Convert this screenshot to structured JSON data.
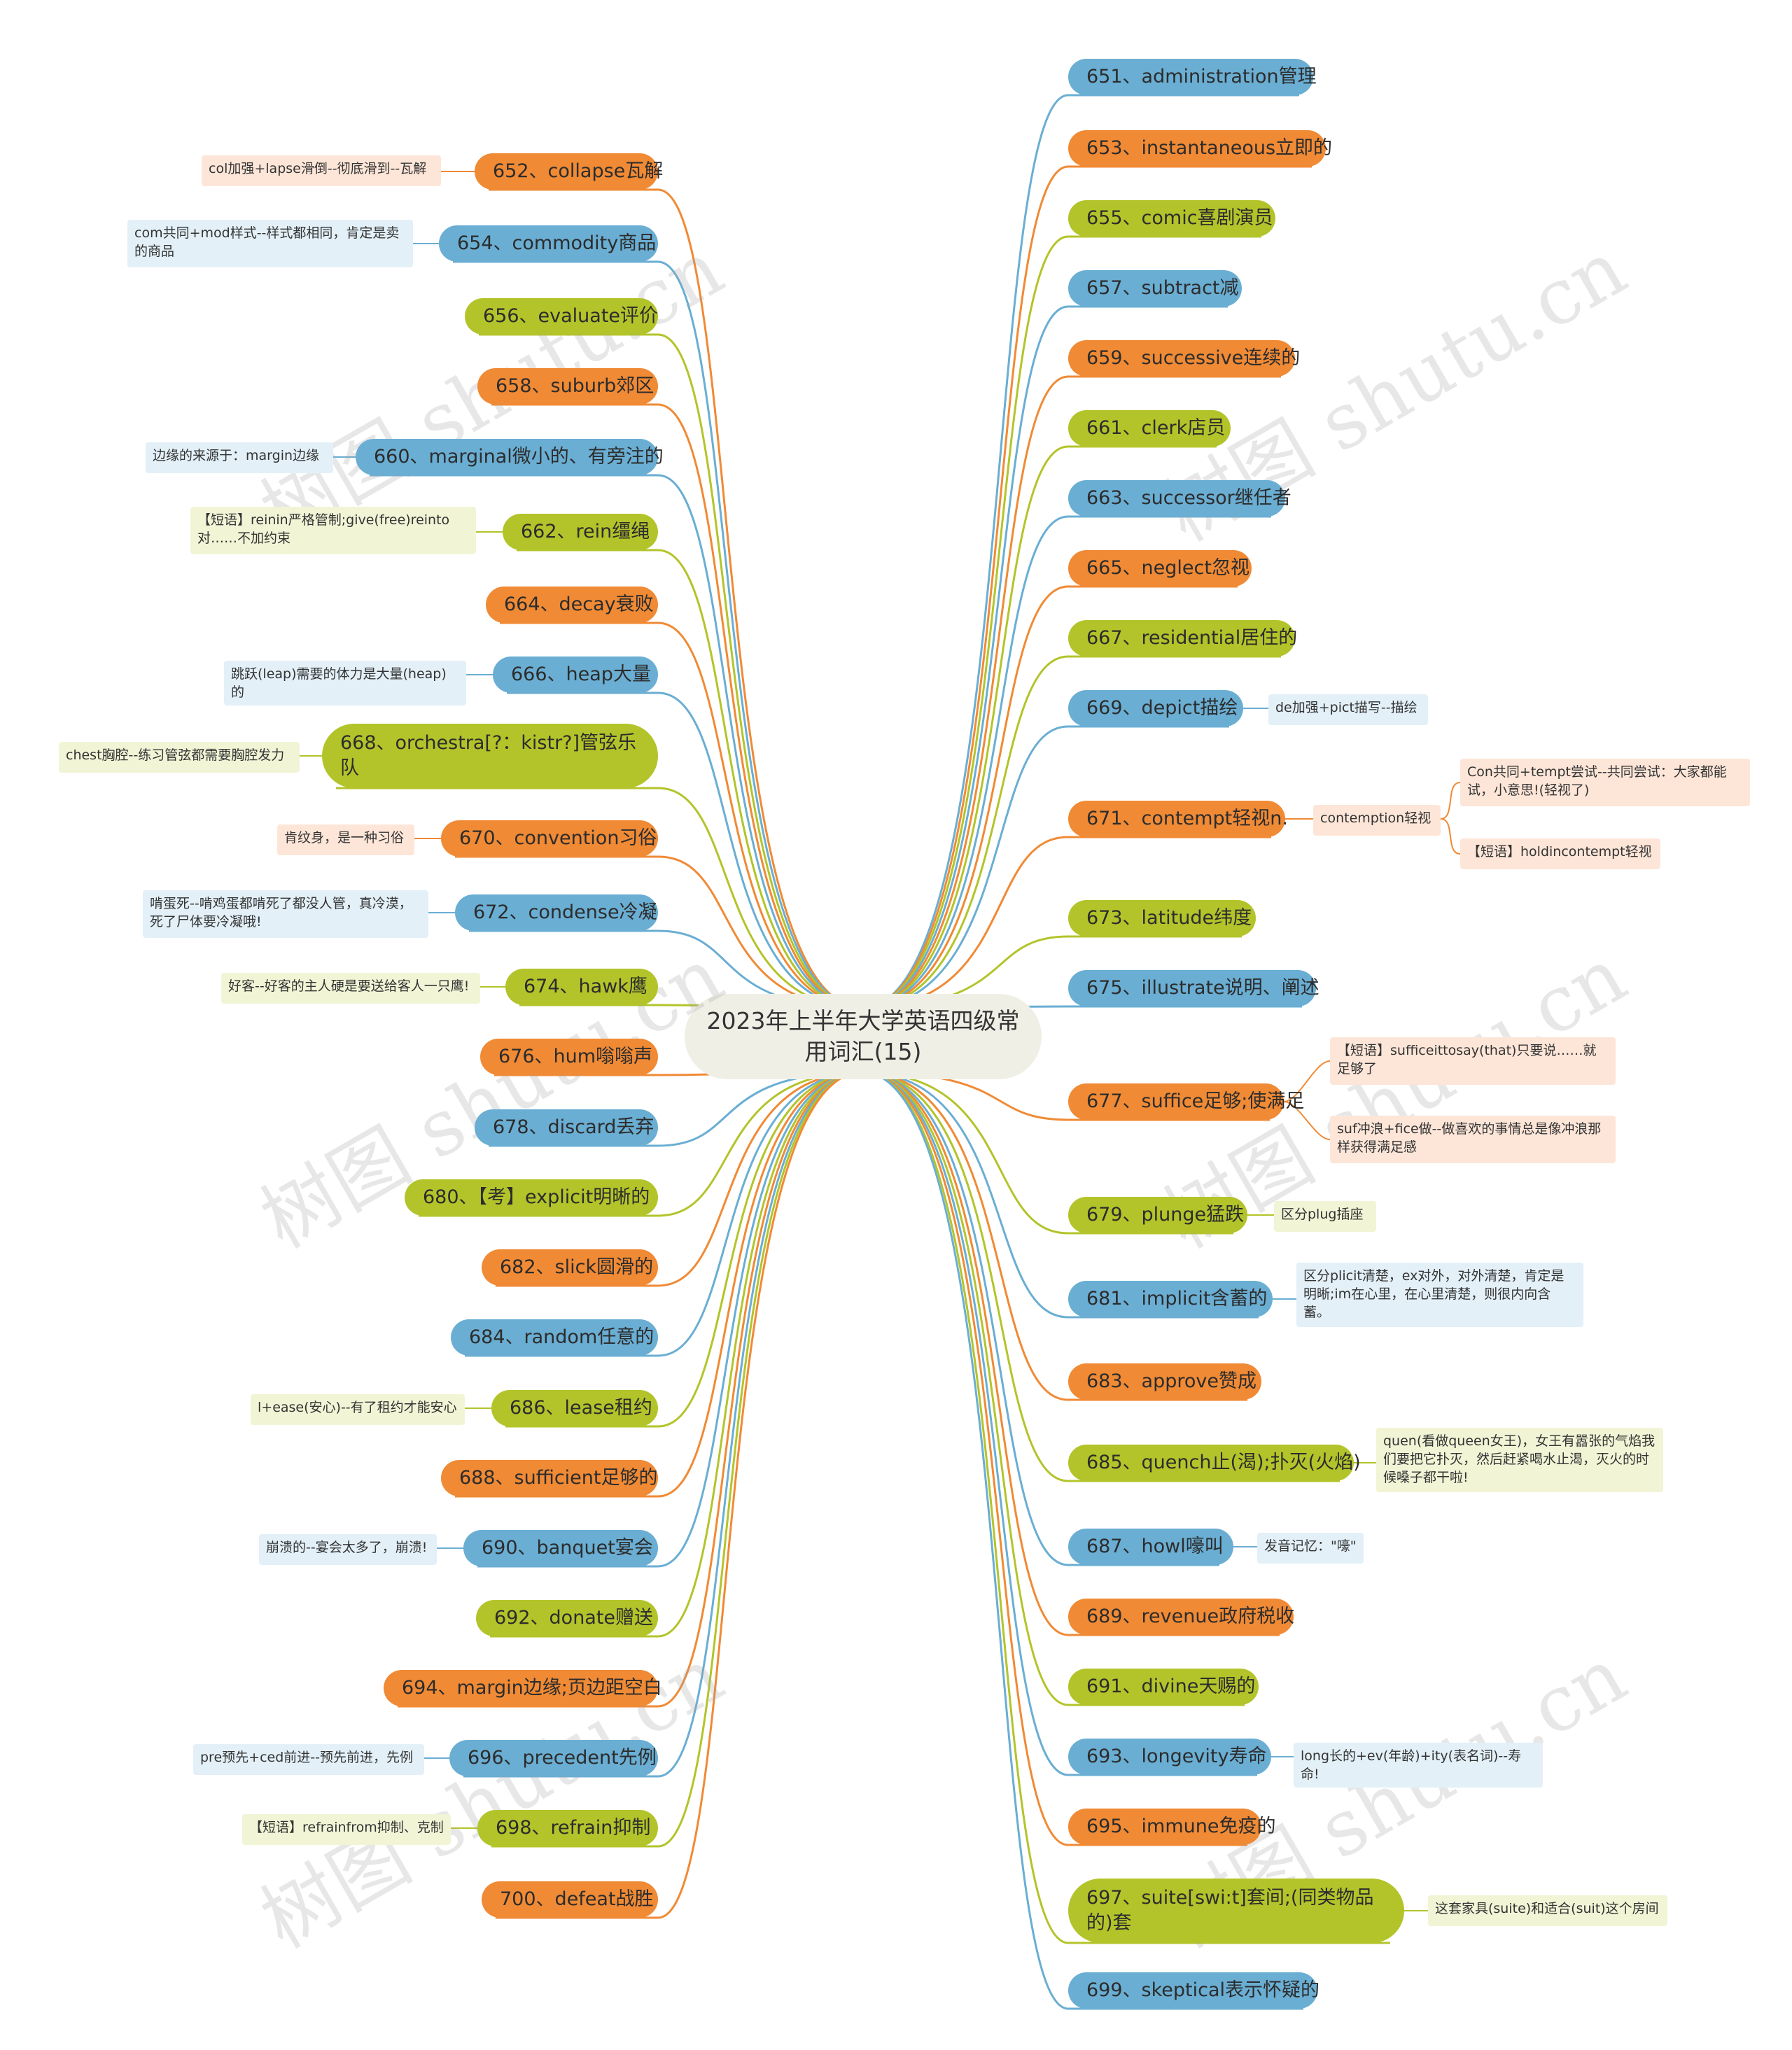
{
  "center_title": "2023年上半年大学英语四级常用词汇(15)",
  "watermark": "树图 shutu.cn",
  "left": [
    {
      "id": "n652",
      "label": "652、collapse瓦解",
      "color": "orange",
      "notes": [
        "col加强+lapse滑倒--彻底滑到--瓦解"
      ]
    },
    {
      "id": "n654",
      "label": "654、commodity商品",
      "color": "blue",
      "notes": [
        "com共同+mod样式--样式都相同，肯定是卖的商品"
      ]
    },
    {
      "id": "n656",
      "label": "656、evaluate评价",
      "color": "green",
      "notes": []
    },
    {
      "id": "n658",
      "label": "658、suburb郊区",
      "color": "orange",
      "notes": []
    },
    {
      "id": "n660",
      "label": "660、marginal微小的、有旁注的",
      "color": "blue",
      "notes": [
        "边缘的来源于：margin边缘"
      ]
    },
    {
      "id": "n662",
      "label": "662、rein缰绳",
      "color": "green",
      "notes": [
        "【短语】reinin严格管制;give(free)reinto对……不加约束"
      ]
    },
    {
      "id": "n664",
      "label": "664、decay衰败",
      "color": "orange",
      "notes": []
    },
    {
      "id": "n666",
      "label": "666、heap大量",
      "color": "blue",
      "notes": [
        "跳跃(leap)需要的体力是大量(heap)的"
      ]
    },
    {
      "id": "n668",
      "label": "668、orchestra[?：kistr?]管弦乐队",
      "color": "green",
      "notes": [
        "chest胸腔--练习管弦都需要胸腔发力"
      ]
    },
    {
      "id": "n670",
      "label": "670、convention习俗",
      "color": "orange",
      "notes": [
        "肯纹身，是一种习俗"
      ]
    },
    {
      "id": "n672",
      "label": "672、condense冷凝",
      "color": "blue",
      "notes": [
        "啃蛋死--啃鸡蛋都啃死了都没人管，真冷漠，死了尸体要冷凝哦!"
      ]
    },
    {
      "id": "n674",
      "label": "674、hawk鹰",
      "color": "green",
      "notes": [
        "好客--好客的主人硬是要送给客人一只鹰!"
      ]
    },
    {
      "id": "n676",
      "label": "676、hum嗡嗡声",
      "color": "orange",
      "notes": []
    },
    {
      "id": "n678",
      "label": "678、discard丢弃",
      "color": "blue",
      "notes": []
    },
    {
      "id": "n680",
      "label": "680、【考】explicit明晰的",
      "color": "green",
      "notes": []
    },
    {
      "id": "n682",
      "label": "682、slick圆滑的",
      "color": "orange",
      "notes": []
    },
    {
      "id": "n684",
      "label": "684、random任意的",
      "color": "blue",
      "notes": []
    },
    {
      "id": "n686",
      "label": "686、lease租约",
      "color": "green",
      "notes": [
        "l+ease(安心)--有了租约才能安心"
      ]
    },
    {
      "id": "n688",
      "label": "688、sufficient足够的",
      "color": "orange",
      "notes": []
    },
    {
      "id": "n690",
      "label": "690、banquet宴会",
      "color": "blue",
      "notes": [
        "崩溃的--宴会太多了，崩溃!"
      ]
    },
    {
      "id": "n692",
      "label": "692、donate赠送",
      "color": "green",
      "notes": []
    },
    {
      "id": "n694",
      "label": "694、margin边缘;页边距空白",
      "color": "orange",
      "notes": []
    },
    {
      "id": "n696",
      "label": "696、precedent先例",
      "color": "blue",
      "notes": [
        "pre预先+ced前进--预先前进，先例"
      ]
    },
    {
      "id": "n698",
      "label": "698、refrain抑制",
      "color": "green",
      "notes": [
        "【短语】refrainfrom抑制、克制"
      ]
    },
    {
      "id": "n700",
      "label": "700、defeat战胜",
      "color": "orange",
      "notes": []
    }
  ],
  "right": [
    {
      "id": "n651",
      "label": "651、administration管理",
      "color": "blue",
      "notes": []
    },
    {
      "id": "n653",
      "label": "653、instantaneous立即的",
      "color": "orange",
      "notes": []
    },
    {
      "id": "n655",
      "label": "655、comic喜剧演员",
      "color": "green",
      "notes": []
    },
    {
      "id": "n657",
      "label": "657、subtract减",
      "color": "blue",
      "notes": []
    },
    {
      "id": "n659",
      "label": "659、successive连续的",
      "color": "orange",
      "notes": []
    },
    {
      "id": "n661",
      "label": "661、clerk店员",
      "color": "green",
      "notes": []
    },
    {
      "id": "n663",
      "label": "663、successor继任者",
      "color": "blue",
      "notes": []
    },
    {
      "id": "n665",
      "label": "665、neglect忽视",
      "color": "orange",
      "notes": []
    },
    {
      "id": "n667",
      "label": "667、residential居住的",
      "color": "green",
      "notes": []
    },
    {
      "id": "n669",
      "label": "669、depict描绘",
      "color": "blue",
      "notes": [
        "de加强+pict描写--描绘"
      ]
    },
    {
      "id": "n671",
      "label": "671、contempt轻视n.",
      "color": "orange",
      "notes": [
        "contemption轻视"
      ],
      "sub": [
        "Con共同+tempt尝试--共同尝试：大家都能试，小意思!(轻视了)",
        "【短语】holdincontempt轻视"
      ]
    },
    {
      "id": "n673",
      "label": "673、latitude纬度",
      "color": "green",
      "notes": []
    },
    {
      "id": "n675",
      "label": "675、illustrate说明、阐述",
      "color": "blue",
      "notes": []
    },
    {
      "id": "n677",
      "label": "677、suffice足够;使满足",
      "color": "orange",
      "notes": [],
      "sub": [
        "【短语】sufficeittosay(that)只要说……就足够了",
        "suf冲浪+fice做--做喜欢的事情总是像冲浪那样获得满足感"
      ]
    },
    {
      "id": "n679",
      "label": "679、plunge猛跌",
      "color": "green",
      "notes": [
        "区分plug插座"
      ]
    },
    {
      "id": "n681",
      "label": "681、implicit含蓄的",
      "color": "blue",
      "notes": [
        "区分plicit清楚，ex对外，对外清楚，肯定是明晰;im在心里，在心里清楚，则很内向含蓄。"
      ]
    },
    {
      "id": "n683",
      "label": "683、approve赞成",
      "color": "orange",
      "notes": []
    },
    {
      "id": "n685",
      "label": "685、quench止(渴);扑灭(火焰)",
      "color": "green",
      "notes": [
        "quen(看做queen女王)，女王有嚣张的气焰我们要把它扑灭，然后赶紧喝水止渴，灭火的时候嗓子都干啦!"
      ]
    },
    {
      "id": "n687",
      "label": "687、howl嚎叫",
      "color": "blue",
      "notes": [
        "发音记忆：\"嚎\""
      ]
    },
    {
      "id": "n689",
      "label": "689、revenue政府税收",
      "color": "orange",
      "notes": []
    },
    {
      "id": "n691",
      "label": "691、divine天赐的",
      "color": "green",
      "notes": []
    },
    {
      "id": "n693",
      "label": "693、longevity寿命",
      "color": "blue",
      "notes": [
        "long长的+ev(年龄)+ity(表名词)--寿命!"
      ]
    },
    {
      "id": "n695",
      "label": "695、immune免疫的",
      "color": "orange",
      "notes": []
    },
    {
      "id": "n697",
      "label": "697、suite[swi:t]套间;(同类物品的)套",
      "color": "green",
      "notes": [
        "这套家具(suite)和适合(suit)这个房间"
      ]
    },
    {
      "id": "n699",
      "label": "699、skeptical表示怀疑的",
      "color": "blue",
      "notes": []
    }
  ],
  "colors": {
    "blue": "#6aaed3",
    "orange": "#f08a35",
    "green": "#b3c42a"
  }
}
